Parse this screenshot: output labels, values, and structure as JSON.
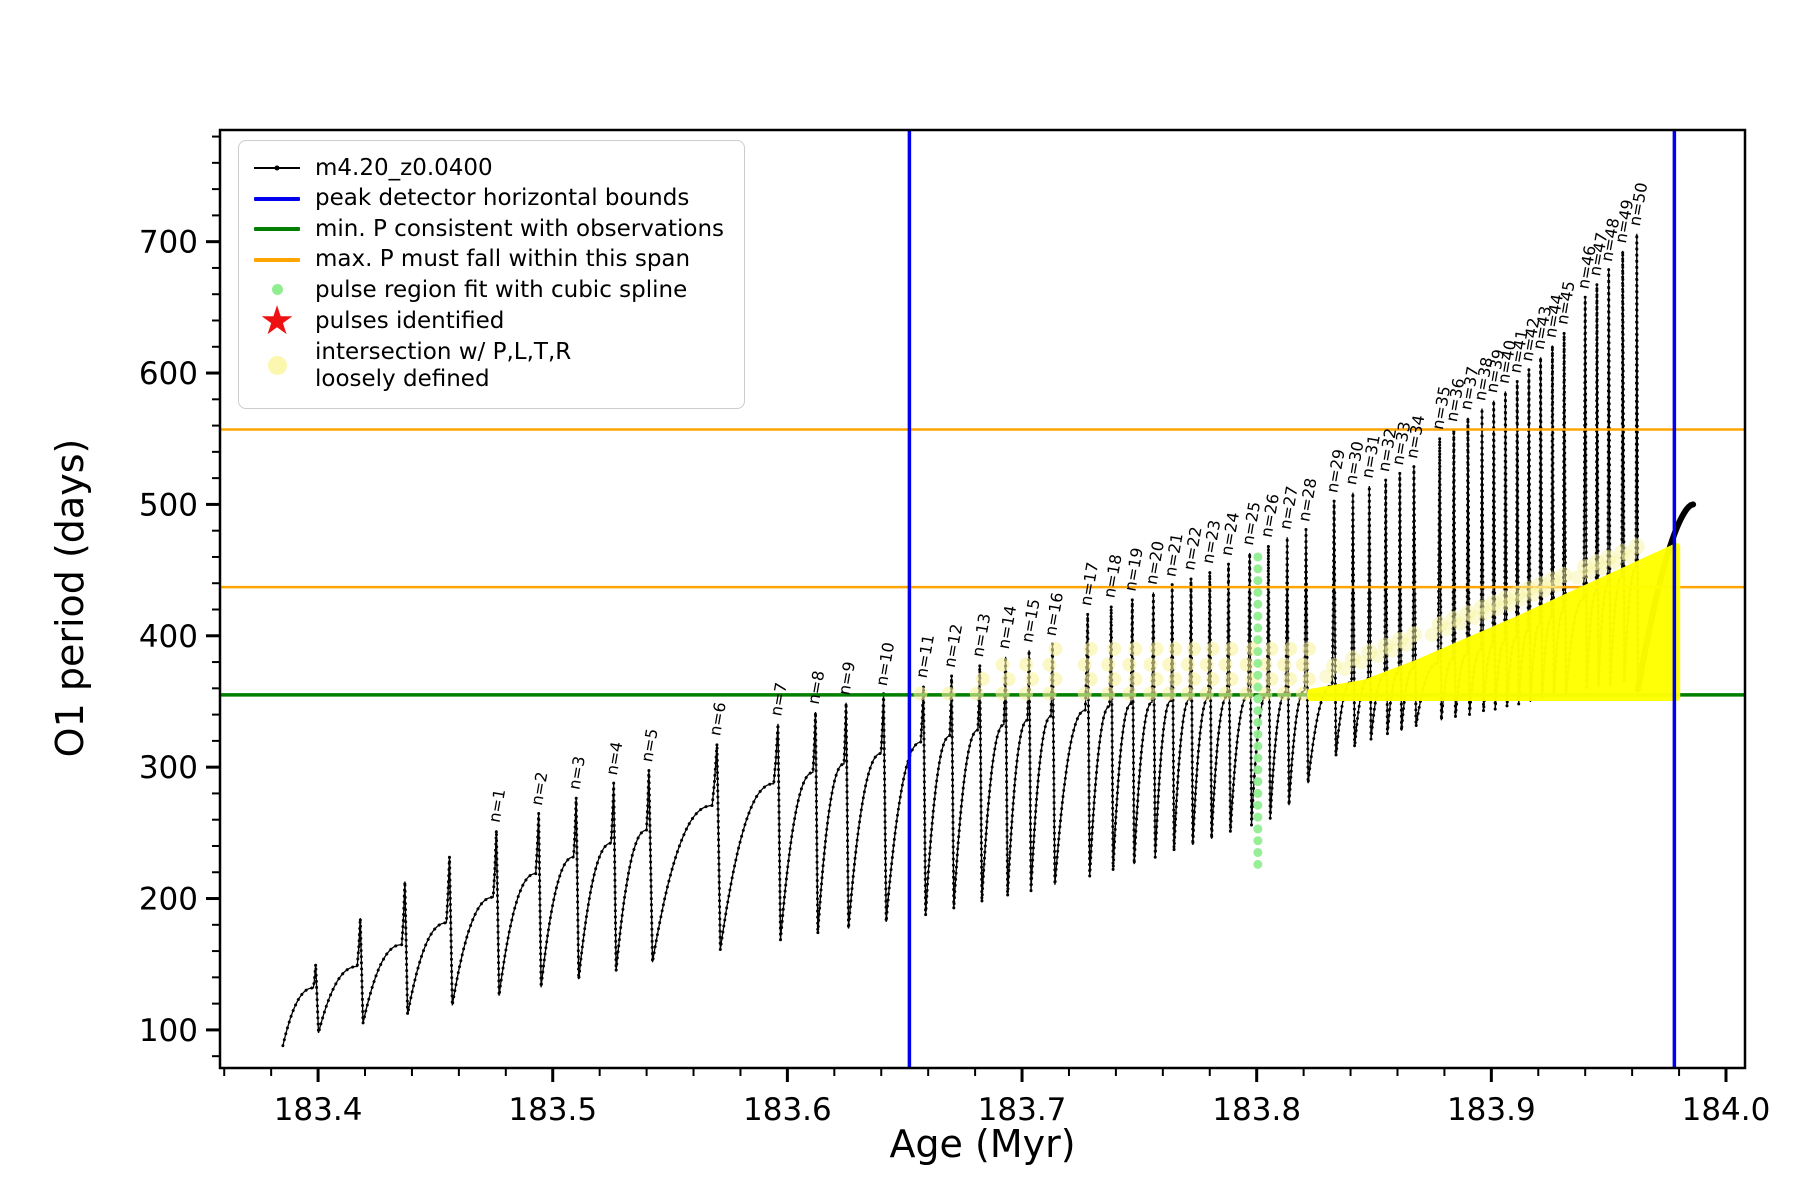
{
  "legend": {
    "items": [
      {
        "label": "m4.20_z0.0400",
        "marker": "line-dot",
        "color": "#000000"
      },
      {
        "label": "peak detector horizontal bounds",
        "marker": "line",
        "color": "#0000ee"
      },
      {
        "label": "min. P consistent with observations",
        "marker": "line",
        "color": "#007f00"
      },
      {
        "label": "max. P must fall within this span",
        "marker": "line",
        "color": "#ffa500"
      },
      {
        "label": "pulse region fit with cubic spline",
        "marker": "dot-small",
        "color": "#90ee90"
      },
      {
        "label": "pulses identified",
        "marker": "star",
        "color": "#ee1111"
      },
      {
        "label": "intersection w/ P,L,T,R\nloosely defined",
        "marker": "dot-big",
        "color": "#fbf7ae"
      }
    ]
  },
  "chart_data": {
    "type": "line",
    "title": "",
    "xlabel": "Age (Myr)",
    "ylabel": "O1 period (days)",
    "xlim": [
      183.3582,
      184.0081
    ],
    "ylim": [
      71,
      785
    ],
    "x_ticks": [
      183.4,
      183.5,
      183.6,
      183.7,
      183.8,
      183.9,
      184.0
    ],
    "y_ticks": [
      100,
      200,
      300,
      400,
      500,
      600,
      700
    ],
    "x_minor_step": 0.02,
    "y_minor_step": 20,
    "grid": false,
    "legend_position": "upper left",
    "series_label": "m4.20_z0.0400",
    "n_label_prefix": "n=",
    "series_start": {
      "age": 183.385,
      "period": 88
    },
    "pre_pulses": [
      {
        "age": 183.399,
        "peak": 150
      },
      {
        "age": 183.418,
        "peak": 185
      },
      {
        "age": 183.437,
        "peak": 213
      },
      {
        "age": 183.456,
        "peak": 232
      }
    ],
    "pulses": [
      {
        "n": 1,
        "age": 183.476,
        "peak": 252
      },
      {
        "n": 2,
        "age": 183.494,
        "peak": 265
      },
      {
        "n": 3,
        "age": 183.51,
        "peak": 277
      },
      {
        "n": 4,
        "age": 183.526,
        "peak": 288
      },
      {
        "n": 5,
        "age": 183.541,
        "peak": 298
      },
      {
        "n": 6,
        "age": 183.57,
        "peak": 318
      },
      {
        "n": 7,
        "age": 183.596,
        "peak": 333
      },
      {
        "n": 8,
        "age": 183.612,
        "peak": 342
      },
      {
        "n": 9,
        "age": 183.625,
        "peak": 349
      },
      {
        "n": 10,
        "age": 183.641,
        "peak": 356
      },
      {
        "n": 11,
        "age": 183.658,
        "peak": 362
      },
      {
        "n": 12,
        "age": 183.67,
        "peak": 370
      },
      {
        "n": 13,
        "age": 183.682,
        "peak": 378
      },
      {
        "n": 14,
        "age": 183.693,
        "peak": 384
      },
      {
        "n": 15,
        "age": 183.703,
        "peak": 389
      },
      {
        "n": 16,
        "age": 183.713,
        "peak": 394
      },
      {
        "n": 17,
        "age": 183.728,
        "peak": 417
      },
      {
        "n": 18,
        "age": 183.738,
        "peak": 423
      },
      {
        "n": 19,
        "age": 183.747,
        "peak": 428
      },
      {
        "n": 20,
        "age": 183.756,
        "peak": 433
      },
      {
        "n": 21,
        "age": 183.764,
        "peak": 439
      },
      {
        "n": 22,
        "age": 183.772,
        "peak": 444
      },
      {
        "n": 23,
        "age": 183.78,
        "peak": 449
      },
      {
        "n": 24,
        "age": 183.788,
        "peak": 455
      },
      {
        "n": 25,
        "age": 183.797,
        "peak": 463
      },
      {
        "n": 26,
        "age": 183.805,
        "peak": 469
      },
      {
        "n": 27,
        "age": 183.813,
        "peak": 475
      },
      {
        "n": 28,
        "age": 183.821,
        "peak": 481
      },
      {
        "n": 29,
        "age": 183.833,
        "peak": 503
      },
      {
        "n": 30,
        "age": 183.841,
        "peak": 509
      },
      {
        "n": 31,
        "age": 183.848,
        "peak": 514
      },
      {
        "n": 32,
        "age": 183.855,
        "peak": 519
      },
      {
        "n": 33,
        "age": 183.861,
        "peak": 524
      },
      {
        "n": 34,
        "age": 183.867,
        "peak": 529
      },
      {
        "n": 35,
        "age": 183.878,
        "peak": 551
      },
      {
        "n": 36,
        "age": 183.884,
        "peak": 557
      },
      {
        "n": 37,
        "age": 183.89,
        "peak": 566
      },
      {
        "n": 38,
        "age": 183.896,
        "peak": 573
      },
      {
        "n": 39,
        "age": 183.901,
        "peak": 579
      },
      {
        "n": 40,
        "age": 183.906,
        "peak": 586
      },
      {
        "n": 41,
        "age": 183.911,
        "peak": 594
      },
      {
        "n": 42,
        "age": 183.916,
        "peak": 603
      },
      {
        "n": 43,
        "age": 183.921,
        "peak": 612
      },
      {
        "n": 44,
        "age": 183.926,
        "peak": 621
      },
      {
        "n": 45,
        "age": 183.931,
        "peak": 631
      },
      {
        "n": 46,
        "age": 183.94,
        "peak": 658
      },
      {
        "n": 47,
        "age": 183.945,
        "peak": 668
      },
      {
        "n": 48,
        "age": 183.95,
        "peak": 679
      },
      {
        "n": 49,
        "age": 183.956,
        "peak": 693
      },
      {
        "n": 50,
        "age": 183.962,
        "peak": 706
      }
    ],
    "base_min": [
      [
        183.385,
        88
      ],
      [
        183.42,
        100
      ],
      [
        183.46,
        112
      ],
      [
        183.5,
        125
      ],
      [
        183.54,
        140
      ],
      [
        183.58,
        152
      ],
      [
        183.62,
        163
      ],
      [
        183.66,
        175
      ],
      [
        183.7,
        192
      ],
      [
        183.74,
        210
      ],
      [
        183.78,
        235
      ],
      [
        183.81,
        255
      ],
      [
        183.83,
        300
      ],
      [
        183.85,
        318
      ],
      [
        183.88,
        332
      ],
      [
        183.91,
        342
      ],
      [
        183.94,
        352
      ],
      [
        183.965,
        360
      ]
    ],
    "shoulder": [
      [
        183.385,
        120
      ],
      [
        183.42,
        150
      ],
      [
        183.46,
        185
      ],
      [
        183.5,
        225
      ],
      [
        183.55,
        258
      ],
      [
        183.6,
        290
      ],
      [
        183.64,
        310
      ],
      [
        183.66,
        320
      ],
      [
        183.7,
        335
      ],
      [
        183.74,
        347
      ],
      [
        183.78,
        353
      ],
      [
        183.82,
        358
      ],
      [
        183.85,
        368
      ],
      [
        183.88,
        380
      ],
      [
        183.91,
        398
      ],
      [
        183.94,
        428
      ],
      [
        183.965,
        455
      ],
      [
        183.99,
        505
      ]
    ],
    "tail": {
      "end_age": 183.986,
      "end_y": 500
    },
    "peak_bounds_x": [
      183.652,
      183.978
    ],
    "min_P_line": 355,
    "max_P_span": [
      437,
      557
    ],
    "spline": {
      "x": 183.8005,
      "y_min": 226,
      "y_max": 468,
      "step": 9
    },
    "pale_rows": [
      356,
      367,
      378,
      390
    ],
    "yellow_region": {
      "polygon": [
        [
          183.823,
          353
        ],
        [
          183.979,
          353
        ],
        [
          183.979,
          468
        ],
        [
          183.956,
          449
        ],
        [
          183.934,
          431
        ],
        [
          183.912,
          413
        ],
        [
          183.89,
          396
        ],
        [
          183.868,
          379
        ],
        [
          183.846,
          364
        ],
        [
          183.823,
          357
        ]
      ],
      "top_edge": [
        [
          183.823,
          358
        ],
        [
          183.979,
          468
        ]
      ]
    },
    "colors": {
      "series": "#000000",
      "blue": "#0000ee",
      "green": "#007f00",
      "orange": "#ffa500",
      "yellow": "#ffff00",
      "pale_yellow": "#f8f3a0",
      "spline": "#90ee90",
      "red": "#ee1111"
    }
  }
}
